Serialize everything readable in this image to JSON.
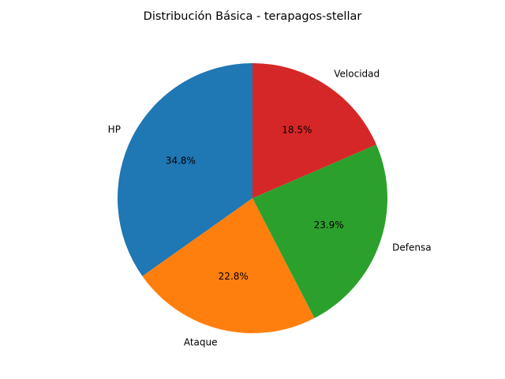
{
  "chart_data": {
    "type": "pie",
    "title": "Distribución Básica - terapagos-stellar",
    "categories": [
      "HP",
      "Ataque",
      "Defensa",
      "Velocidad"
    ],
    "values": [
      34.8,
      22.8,
      23.9,
      18.5
    ],
    "percent_labels": [
      "34.8%",
      "22.8%",
      "23.9%",
      "18.5%"
    ],
    "colors": [
      "#1f77b4",
      "#ff7f0e",
      "#2ca02c",
      "#d62728"
    ],
    "start_angle_deg": 90,
    "direction": "counterclockwise",
    "legend": "none"
  }
}
